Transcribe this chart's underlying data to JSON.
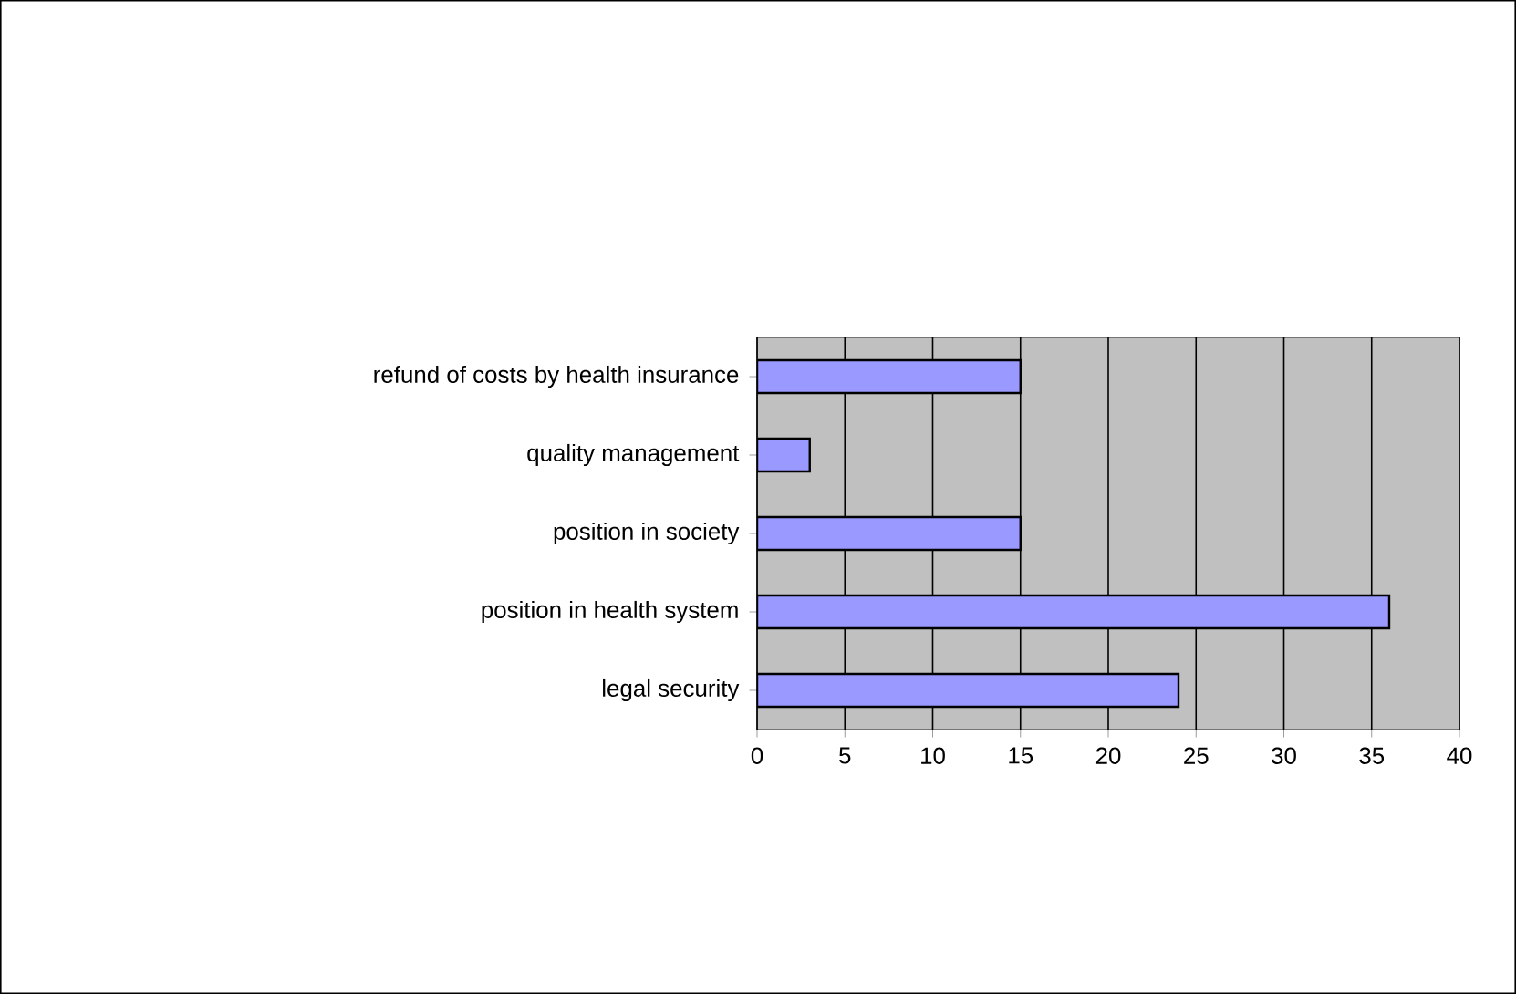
{
  "chart_data": {
    "type": "bar",
    "orientation": "horizontal",
    "categories": [
      "refund of costs by health insurance",
      "quality management",
      "position in society",
      "position in health system",
      "legal security"
    ],
    "values": [
      15,
      3,
      15,
      36,
      24
    ],
    "color": "#9999ff",
    "xlim": [
      0,
      40
    ],
    "xticks": [
      0,
      5,
      10,
      15,
      20,
      25,
      30,
      35,
      40
    ],
    "grid": "x"
  }
}
